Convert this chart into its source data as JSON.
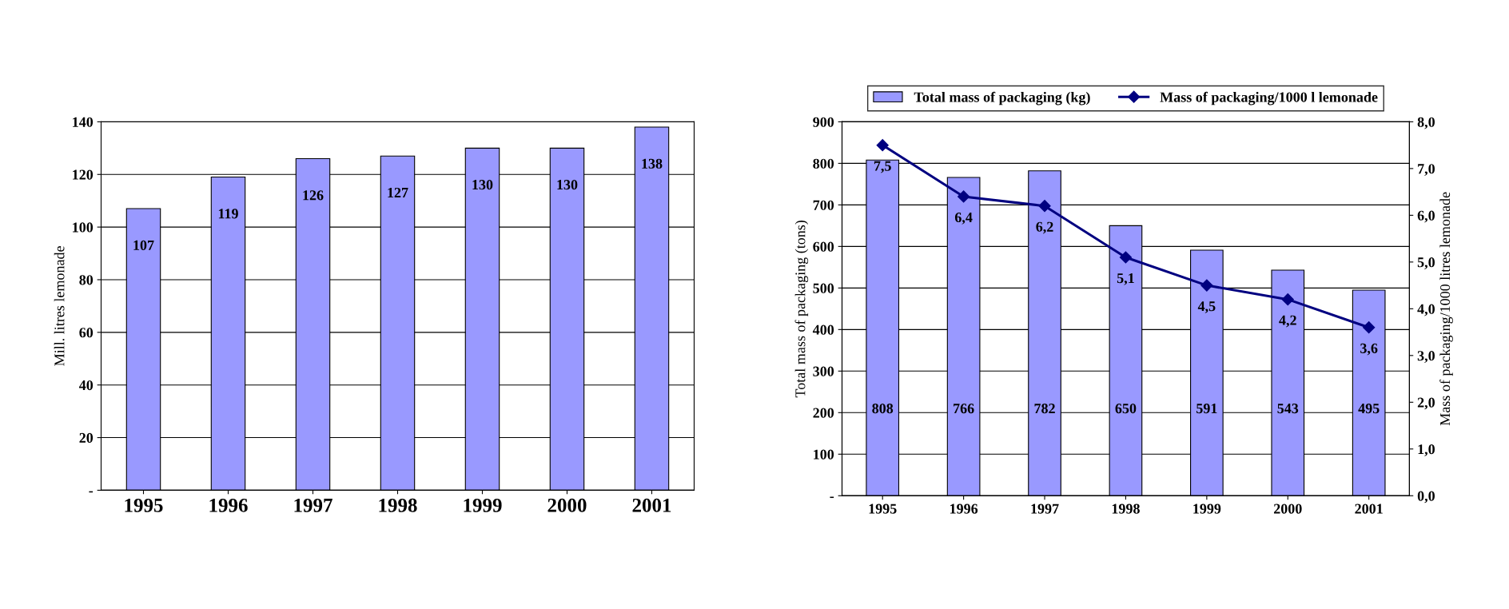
{
  "chart_data": [
    {
      "type": "bar",
      "ylabel": "Mill. litres lemonade",
      "categories": [
        "1995",
        "1996",
        "1997",
        "1998",
        "1999",
        "2000",
        "2001"
      ],
      "values": [
        107,
        119,
        126,
        127,
        130,
        130,
        138
      ],
      "color": "#9999ff",
      "ylim": [
        0,
        140
      ],
      "yticks": [
        {
          "value": 0,
          "label": "-"
        },
        20,
        40,
        60,
        80,
        100,
        120,
        140
      ],
      "grid": "y",
      "data_labels": true
    },
    {
      "type": "bar",
      "ylabel": "Total mass of packaging (tons)",
      "y2label": "Mass of packaging/1000 litres lemonade",
      "categories": [
        "1995",
        "1996",
        "1997",
        "1998",
        "1999",
        "2000",
        "2001"
      ],
      "series": [
        {
          "name": "Total mass of packaging (kg)",
          "type": "bar",
          "color": "#9999ff",
          "values": [
            808,
            766,
            782,
            650,
            591,
            543,
            495
          ],
          "value_labels": [
            "808",
            "766",
            "782",
            "650",
            "591",
            "543",
            "495"
          ]
        },
        {
          "name": "Mass of packaging/1000 l lemonade",
          "type": "line",
          "axis": "y2",
          "color": "#000080",
          "marker": "diamond",
          "values": [
            7.5,
            6.4,
            6.2,
            5.1,
            4.5,
            4.2,
            3.6
          ],
          "value_labels": [
            "7,5",
            "6,4",
            "6,2",
            "5,1",
            "4,5",
            "4,2",
            "3,6"
          ]
        }
      ],
      "ylim": [
        0,
        900
      ],
      "yticks": [
        {
          "value": 0,
          "label": "-"
        },
        100,
        200,
        300,
        400,
        500,
        600,
        700,
        800,
        900
      ],
      "y2lim": [
        0,
        8
      ],
      "y2ticks": [
        {
          "value": 0,
          "label": "0,0"
        },
        {
          "value": 1,
          "label": "1,0"
        },
        {
          "value": 2,
          "label": "2,0"
        },
        {
          "value": 3,
          "label": "3,0"
        },
        {
          "value": 4,
          "label": "4,0"
        },
        {
          "value": 5,
          "label": "5,0"
        },
        {
          "value": 6,
          "label": "6,0"
        },
        {
          "value": 7,
          "label": "7,0"
        },
        {
          "value": 8,
          "label": "8,0"
        }
      ],
      "grid": "y",
      "legend": "top"
    }
  ]
}
